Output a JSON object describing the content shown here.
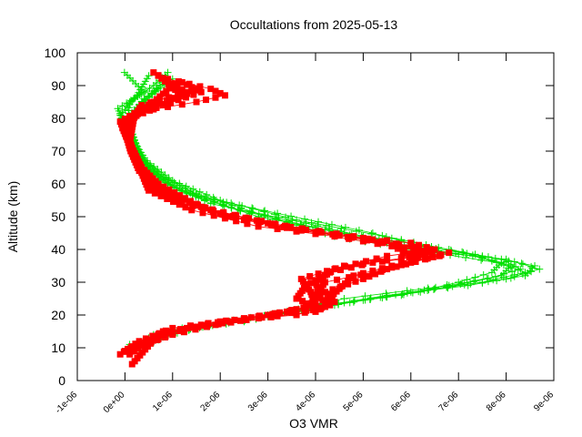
{
  "chart_data": {
    "type": "scatter",
    "title": "Occultations from 2025-05-13",
    "xlabel": "O3 VMR",
    "ylabel": "Altitude (km)",
    "xlim": [
      -1e-06,
      9e-06
    ],
    "ylim": [
      0,
      100
    ],
    "x_ticks": [
      -1e-06,
      0,
      1e-06,
      2e-06,
      3e-06,
      4e-06,
      5e-06,
      6e-06,
      7e-06,
      8e-06,
      9e-06
    ],
    "x_tick_labels": [
      "-1e-06",
      "0e+00",
      "1e-06",
      "2e-06",
      "3e-06",
      "4e-06",
      "5e-06",
      "6e-06",
      "7e-06",
      "8e-06",
      "9e-06"
    ],
    "y_ticks": [
      0,
      10,
      20,
      30,
      40,
      50,
      60,
      70,
      80,
      90,
      100
    ],
    "y_tick_labels": [
      "0",
      "10",
      "20",
      "30",
      "40",
      "50",
      "60",
      "70",
      "80",
      "90",
      "100"
    ],
    "grid": false,
    "colors": {
      "green": "#00e000",
      "red": "#ff0000"
    },
    "series": [
      {
        "color": "#00e000",
        "marker": "plus",
        "profiles": [
          [
            [
              3e-07,
              9
            ],
            [
              1e-06,
              15
            ],
            [
              2.5e-06,
              18
            ],
            [
              3.5e-06,
              21
            ],
            [
              4.8e-06,
              24
            ],
            [
              6.5e-06,
              28
            ],
            [
              8e-06,
              31
            ],
            [
              8.7e-06,
              34
            ],
            [
              8e-06,
              37
            ],
            [
              6e-06,
              40
            ],
            [
              4.4e-06,
              44
            ],
            [
              3e-06,
              50
            ],
            [
              1.5e-06,
              57
            ],
            [
              8e-07,
              62
            ],
            [
              3.5e-07,
              68
            ],
            [
              1.5e-07,
              75
            ],
            [
              -5e-08,
              80
            ],
            [
              -1.5e-07,
              83
            ],
            [
              4e-07,
              88
            ],
            [
              -1e-08,
              94
            ]
          ],
          [
            [
              2e-07,
              10
            ],
            [
              1.2e-06,
              16
            ],
            [
              3e-06,
              20
            ],
            [
              4.4e-06,
              23
            ],
            [
              6e-06,
              27
            ],
            [
              7.5e-06,
              30
            ],
            [
              8.4e-06,
              33
            ],
            [
              7.8e-06,
              36
            ],
            [
              6.5e-06,
              39
            ],
            [
              5e-06,
              44
            ],
            [
              3.8e-06,
              48
            ],
            [
              1.8e-06,
              54
            ],
            [
              9e-07,
              60
            ],
            [
              4e-07,
              66
            ],
            [
              2e-07,
              72
            ],
            [
              5e-08,
              78
            ],
            [
              1e-07,
              85
            ],
            [
              6e-07,
              90
            ],
            [
              9e-07,
              94
            ]
          ],
          [
            [
              4e-07,
              12
            ],
            [
              1.8e-06,
              17
            ],
            [
              3.4e-06,
              21
            ],
            [
              4.6e-06,
              25
            ],
            [
              6.8e-06,
              29
            ],
            [
              7.9e-06,
              32
            ],
            [
              8.1e-06,
              35
            ],
            [
              7.3e-06,
              38
            ],
            [
              5.5e-06,
              42
            ],
            [
              4.2e-06,
              46
            ],
            [
              2.4e-06,
              52
            ],
            [
              1.2e-06,
              58
            ],
            [
              5e-07,
              64
            ],
            [
              2.5e-07,
              70
            ],
            [
              1e-07,
              76
            ],
            [
              2e-07,
              82
            ],
            [
              7e-07,
              89
            ]
          ],
          [
            [
              5e-07,
              13
            ],
            [
              2.2e-06,
              18
            ],
            [
              3.8e-06,
              22
            ],
            [
              5.5e-06,
              26
            ],
            [
              7.2e-06,
              29
            ],
            [
              8.4e-06,
              32
            ],
            [
              8.6e-06,
              35
            ],
            [
              7.5e-06,
              38
            ],
            [
              6.2e-06,
              41
            ],
            [
              5.2e-06,
              45
            ],
            [
              3.2e-06,
              51
            ],
            [
              1.6e-06,
              56
            ],
            [
              7e-07,
              63
            ],
            [
              3e-07,
              69
            ],
            [
              1.2e-07,
              77
            ],
            [
              3e-07,
              84
            ],
            [
              8e-07,
              91
            ]
          ],
          [
            [
              1e-07,
              11
            ],
            [
              1.5e-06,
              16
            ],
            [
              3.2e-06,
              20
            ],
            [
              4.8e-06,
              24
            ],
            [
              6.2e-06,
              27
            ],
            [
              7.6e-06,
              31
            ],
            [
              8.3e-06,
              34
            ],
            [
              7.9e-06,
              37
            ],
            [
              6.8e-06,
              40
            ],
            [
              4.6e-06,
              45
            ],
            [
              2.8e-06,
              50
            ],
            [
              1.3e-06,
              57
            ],
            [
              6e-07,
              62
            ],
            [
              2e-07,
              71
            ],
            [
              0.0,
              79
            ],
            [
              4e-07,
              86
            ],
            [
              1e-06,
              92
            ]
          ],
          [
            [
              6e-07,
              14
            ],
            [
              2.6e-06,
              19
            ],
            [
              4.2e-06,
              23
            ],
            [
              5.8e-06,
              26
            ],
            [
              7e-06,
              30
            ],
            [
              7.7e-06,
              33
            ],
            [
              7.9e-06,
              36
            ],
            [
              7.1e-06,
              39
            ],
            [
              5.8e-06,
              43
            ],
            [
              3.6e-06,
              49
            ],
            [
              2e-06,
              55
            ],
            [
              1e-06,
              61
            ],
            [
              4.5e-07,
              67
            ],
            [
              1.5e-07,
              74
            ],
            [
              -1e-07,
              81
            ],
            [
              2.5e-07,
              87
            ],
            [
              5e-07,
              93
            ]
          ]
        ]
      },
      {
        "color": "#ff0000",
        "marker": "square",
        "profiles": [
          [
            [
              -1e-07,
              8
            ],
            [
              3e-07,
              12
            ],
            [
              1e-06,
              16
            ],
            [
              2.5e-06,
              19
            ],
            [
              3.8e-06,
              22
            ],
            [
              4.1e-06,
              26
            ],
            [
              4e-06,
              30
            ],
            [
              4.4e-06,
              34
            ],
            [
              5.5e-06,
              38
            ],
            [
              6.5e-06,
              40
            ],
            [
              6e-06,
              42
            ],
            [
              4e-06,
              45
            ],
            [
              2.5e-06,
              49
            ],
            [
              1.2e-06,
              54
            ],
            [
              6e-07,
              59
            ],
            [
              3e-07,
              66
            ],
            [
              1e-07,
              72
            ],
            [
              -5e-08,
              77
            ],
            [
              3e-07,
              82
            ],
            [
              1.5e-06,
              85
            ],
            [
              2.1e-06,
              87
            ],
            [
              1.8e-06,
              89
            ],
            [
              9e-07,
              92
            ]
          ],
          [
            [
              0.0,
              9
            ],
            [
              6e-07,
              13
            ],
            [
              1.6e-06,
              17
            ],
            [
              3e-06,
              20
            ],
            [
              4e-06,
              23
            ],
            [
              3.9e-06,
              27
            ],
            [
              3.7e-06,
              31
            ],
            [
              4.6e-06,
              35
            ],
            [
              5.8e-06,
              37
            ],
            [
              6.3e-06,
              39
            ],
            [
              5.2e-06,
              43
            ],
            [
              3.6e-06,
              46
            ],
            [
              2e-06,
              51
            ],
            [
              9e-07,
              57
            ],
            [
              4e-07,
              63
            ],
            [
              2e-07,
              69
            ],
            [
              2e-08,
              75
            ],
            [
              1e-07,
              80
            ],
            [
              8e-07,
              84
            ],
            [
              1.6e-06,
              88
            ],
            [
              1.2e-06,
              91
            ]
          ],
          [
            [
              2e-07,
              10
            ],
            [
              1e-06,
              14
            ],
            [
              2.2e-06,
              18
            ],
            [
              3.4e-06,
              21
            ],
            [
              4.2e-06,
              24
            ],
            [
              4.5e-06,
              28
            ],
            [
              4.8e-06,
              32
            ],
            [
              5.6e-06,
              35
            ],
            [
              6.6e-06,
              38
            ],
            [
              6e-06,
              41
            ],
            [
              4.8e-06,
              44
            ],
            [
              3e-06,
              48
            ],
            [
              1.6e-06,
              53
            ],
            [
              7e-07,
              60
            ],
            [
              3.5e-07,
              65
            ],
            [
              1.5e-07,
              71
            ],
            [
              0.0,
              78
            ],
            [
              4e-07,
              83
            ],
            [
              1.2e-06,
              87
            ],
            [
              7e-07,
              93
            ]
          ],
          [
            [
              1e-07,
              8
            ],
            [
              8e-07,
              15
            ],
            [
              1.9e-06,
              17
            ],
            [
              3.2e-06,
              20
            ],
            [
              4.1e-06,
              22
            ],
            [
              3.6e-06,
              25
            ],
            [
              3.8e-06,
              29
            ],
            [
              4.3e-06,
              33
            ],
            [
              5.2e-06,
              36
            ],
            [
              6.1e-06,
              38
            ],
            [
              5.6e-06,
              41
            ],
            [
              4.4e-06,
              44
            ],
            [
              2.8e-06,
              47
            ],
            [
              1.4e-06,
              52
            ],
            [
              5e-07,
              58
            ],
            [
              2.5e-07,
              67
            ],
            [
              5e-08,
              74
            ],
            [
              -1e-07,
              79
            ],
            [
              6e-07,
              85
            ],
            [
              1e-06,
              90
            ]
          ],
          [
            [
              4e-07,
              11
            ],
            [
              1.3e-06,
              16
            ],
            [
              2.8e-06,
              19
            ],
            [
              4e-06,
              21
            ],
            [
              4.4e-06,
              24
            ],
            [
              4.2e-06,
              27
            ],
            [
              5e-06,
              31
            ],
            [
              5.5e-06,
              34
            ],
            [
              6.3e-06,
              37
            ],
            [
              6.8e-06,
              39
            ],
            [
              5.4e-06,
              42
            ],
            [
              3.8e-06,
              46
            ],
            [
              2.2e-06,
              50
            ],
            [
              1e-06,
              56
            ],
            [
              4.5e-07,
              61
            ],
            [
              2e-07,
              68
            ],
            [
              1e-07,
              73
            ],
            [
              2e-07,
              81
            ],
            [
              1.1e-06,
              86
            ],
            [
              1.5e-06,
              89
            ]
          ],
          [
            [
              1.5e-07,
              5
            ],
            [
              7e-07,
              14
            ],
            [
              2e-06,
              18
            ],
            [
              3.6e-06,
              20
            ],
            [
              4.3e-06,
              23
            ],
            [
              4e-06,
              26
            ],
            [
              4.2e-06,
              30
            ],
            [
              5.2e-06,
              33
            ],
            [
              6e-06,
              36
            ],
            [
              6.4e-06,
              40
            ],
            [
              5e-06,
              43
            ],
            [
              3.4e-06,
              47
            ],
            [
              1.8e-06,
              52
            ],
            [
              8e-07,
              58
            ],
            [
              3e-07,
              64
            ],
            [
              1.2e-07,
              70
            ],
            [
              0.0,
              76
            ],
            [
              3.5e-07,
              84
            ],
            [
              1.3e-06,
              88
            ],
            [
              6e-07,
              94
            ]
          ]
        ]
      }
    ]
  }
}
